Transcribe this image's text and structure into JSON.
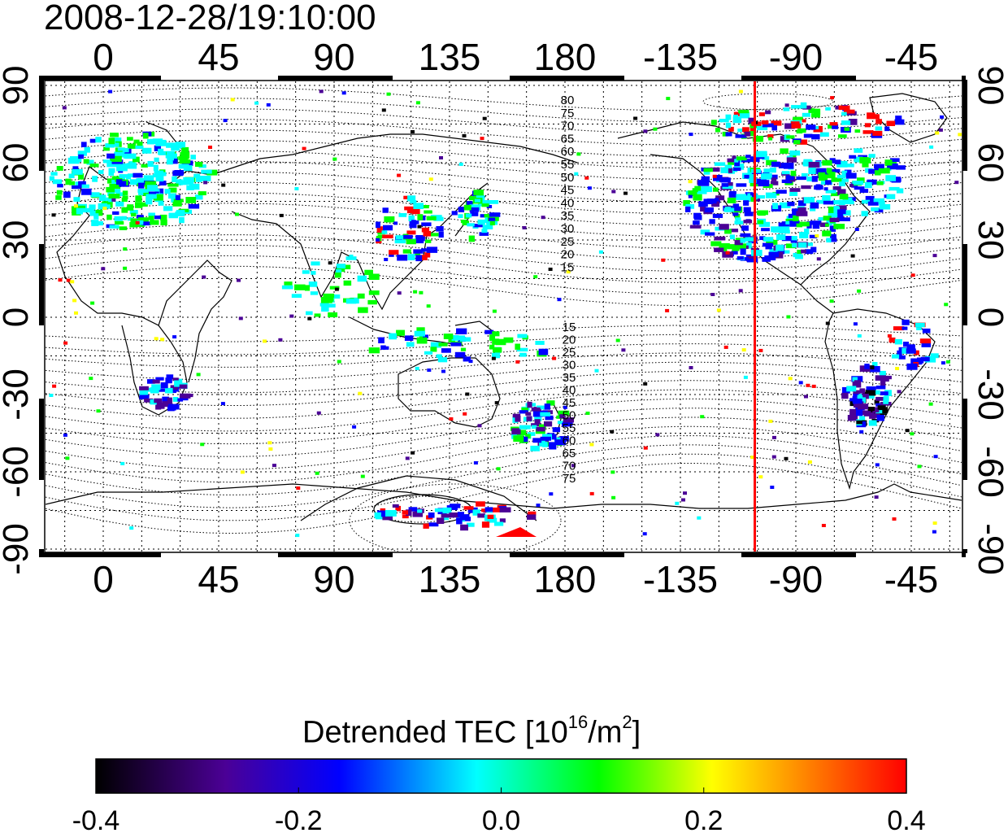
{
  "map": {
    "timestamp": "2008-12-28/19:10:00",
    "lon_ticks_top": [
      "0",
      "45",
      "90",
      "135",
      "180",
      "-135",
      "-90",
      "-45"
    ],
    "lon_ticks_bottom": [
      "0",
      "45",
      "90",
      "135",
      "180",
      "-135",
      "-90",
      "-45"
    ],
    "lat_ticks_left": [
      "90",
      "60",
      "30",
      "0",
      "-30",
      "-60",
      "-90"
    ],
    "lat_ticks_right": [
      "90",
      "60",
      "30",
      "0",
      "-30",
      "-60",
      "-90"
    ],
    "contour_labels_north": [
      "80",
      "75",
      "70",
      "65",
      "60",
      "55",
      "50",
      "45",
      "40",
      "35",
      "30",
      "25",
      "20",
      "15"
    ],
    "contour_labels_south": [
      "15",
      "20",
      "25",
      "30",
      "35",
      "40",
      "45",
      "50",
      "55",
      "60",
      "65",
      "70",
      "75"
    ],
    "terminator_longitude": -106,
    "terminator_color": "#ff0000",
    "lon_range": [
      -23,
      338
    ],
    "lat_range": [
      -90,
      90
    ]
  },
  "colorbar": {
    "title_main": "Detrended TEC  [10",
    "title_exp": "16",
    "title_unit": "/m",
    "title_unit_exp": "2",
    "title_close": "]",
    "min": -0.4,
    "max": 0.4,
    "tick_labels": [
      "-0.4",
      "-0.2",
      "0.0",
      "0.2",
      "0.4"
    ],
    "colors": [
      "#000000",
      "#4b0096",
      "#0000ff",
      "#00ffff",
      "#00ff00",
      "#ffff00",
      "#ff0000"
    ]
  }
}
